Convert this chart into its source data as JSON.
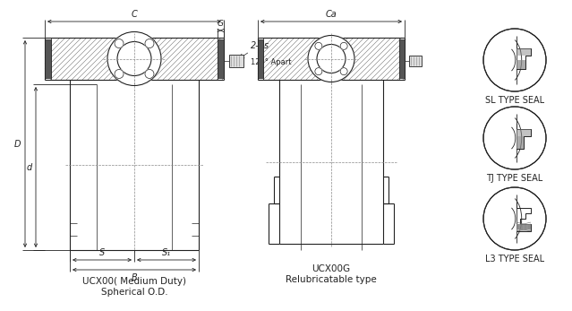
{
  "bg_color": "#ffffff",
  "line_color": "#222222",
  "title1": "UCX00( Medium Duty)\nSpherical O.D.",
  "title2": "UCX00G\nRelubricatable type",
  "seal_labels": [
    "SL TYPE SEAL",
    "TJ TYPE SEAL",
    "L3 TYPE SEAL"
  ],
  "dim_labels": {
    "C": "C",
    "Ca": "Ca",
    "G": "G",
    "ds": "2-ds",
    "apart": "120° Apart",
    "D": "D",
    "d": "d",
    "S": "S",
    "S1": "S₁",
    "B": "B"
  },
  "font_size_dim": 7,
  "font_size_title": 7.5,
  "font_size_seal": 7,
  "font_size_note": 6
}
